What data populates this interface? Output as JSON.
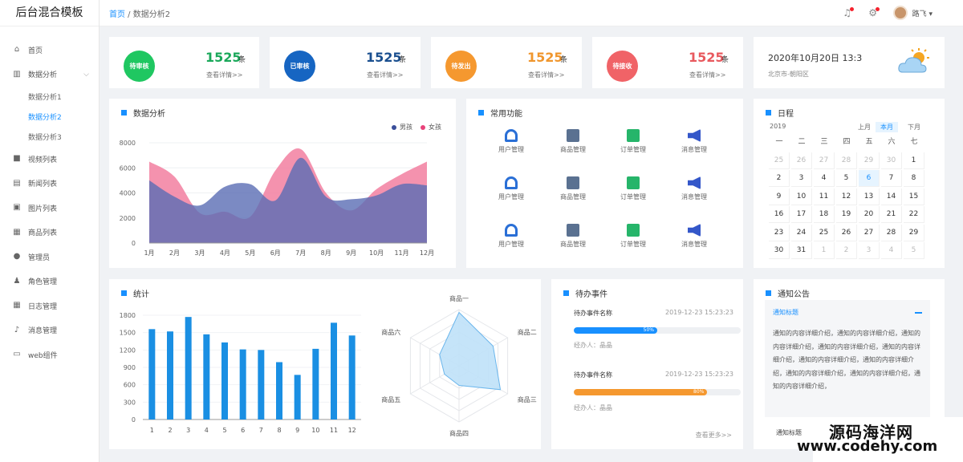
{
  "app": {
    "title": "后台混合模板"
  },
  "sidebar": {
    "items": [
      {
        "icon": "home-icon",
        "label": "首页"
      },
      {
        "icon": "bar-chart-icon",
        "label": "数据分析"
      },
      {
        "label": "数据分析1"
      },
      {
        "label": "数据分析2"
      },
      {
        "label": "数据分析3"
      },
      {
        "icon": "video-icon",
        "label": "视频列表"
      },
      {
        "icon": "document-icon",
        "label": "新闻列表"
      },
      {
        "icon": "image-icon",
        "label": "图片列表"
      },
      {
        "icon": "shop-icon",
        "label": "商品列表"
      },
      {
        "icon": "user-icon",
        "label": "管理员"
      },
      {
        "icon": "users-icon",
        "label": "角色管理"
      },
      {
        "icon": "calendar-icon",
        "label": "日志管理"
      },
      {
        "icon": "bell-icon",
        "label": "消息管理"
      },
      {
        "icon": "component-icon",
        "label": "web组件"
      }
    ]
  },
  "topbar": {
    "breadcrumb_home": "首页",
    "breadcrumb_sep": " / ",
    "breadcrumb_current": "数据分析2",
    "username": "路飞 ▾"
  },
  "stats": [
    {
      "badge": "待审核",
      "value": "1525",
      "unit": "条",
      "link": "查看详情>>",
      "color": "#1fc761"
    },
    {
      "badge": "已审核",
      "value": "1525",
      "unit": "条",
      "link": "查看详情>>",
      "color": "#1665c2"
    },
    {
      "badge": "待发出",
      "value": "1525",
      "unit": "条",
      "link": "查看详情>>",
      "color": "#f5982f"
    },
    {
      "badge": "待接收",
      "value": "1525",
      "unit": "条",
      "link": "查看详情>>",
      "color": "#f06367"
    }
  ],
  "datetime": {
    "date": "2020年10月20日 13:3",
    "location": "北京市-朝阳区"
  },
  "analysis": {
    "title": "数据分析",
    "legend": [
      "男孩",
      "女孩"
    ]
  },
  "functions": {
    "title": "常用功能",
    "labels": [
      "用户管理",
      "商品管理",
      "订单管理",
      "消息管理"
    ]
  },
  "calendar": {
    "title": "日程",
    "year": "2019",
    "buttons": [
      "上月",
      "本月",
      "下月"
    ],
    "weekdays": [
      "一",
      "二",
      "三",
      "四",
      "五",
      "六",
      "七"
    ],
    "days": [
      [
        "25",
        "26",
        "27",
        "28",
        "29",
        "30",
        "1"
      ],
      [
        "2",
        "3",
        "4",
        "5",
        "6",
        "7",
        "8"
      ],
      [
        "9",
        "10",
        "11",
        "12",
        "13",
        "14",
        "15"
      ],
      [
        "16",
        "17",
        "18",
        "19",
        "20",
        "21",
        "22"
      ],
      [
        "23",
        "24",
        "25",
        "26",
        "27",
        "28",
        "29"
      ],
      [
        "30",
        "31",
        "1",
        "2",
        "3",
        "4",
        "5"
      ]
    ]
  },
  "stats_chart": {
    "title": "统计"
  },
  "todo": {
    "title": "待办事件",
    "items": [
      {
        "name": "待办事件名称",
        "time": "2019-12-23   15:23:23",
        "progress": 50,
        "label": "50%",
        "person": "经办人：晶晶",
        "color": "#1890ff"
      },
      {
        "name": "待办事件名称",
        "time": "2019-12-23   15:23:23",
        "progress": 80,
        "label": "80%",
        "person": "经办人：晶晶",
        "color": "#f5982f"
      }
    ],
    "more": "查看更多>>"
  },
  "notice": {
    "title": "通知公告",
    "item_title": "通知标题",
    "body": "通知的内容详细介绍，通知的内容详细介绍，通知的内容详细介绍，通知的内容详细介绍，通知的内容详细介绍，通知的内容详细介绍，通知的内容详细介绍，通知的内容详细介绍，通知的内容详细介绍，通知的内容详细介绍，",
    "item_title2": "通知标题"
  },
  "watermark": {
    "line1": "源码海洋网",
    "line2": "www.codehy.com"
  },
  "chart_data": [
    {
      "type": "area",
      "categories": [
        "1月",
        "2月",
        "3月",
        "4月",
        "5月",
        "6月",
        "7月",
        "8月",
        "9月",
        "10月",
        "11月",
        "12月"
      ],
      "ylim": [
        0,
        8000
      ],
      "yticks": [
        "0",
        "2000",
        "4000",
        "6000",
        "8000"
      ],
      "series": [
        {
          "name": "男孩",
          "color": "#5a6db4",
          "values": [
            5000,
            3700,
            3000,
            4500,
            4700,
            3400,
            6800,
            3700,
            3500,
            3800,
            4700,
            4600
          ]
        },
        {
          "name": "女孩",
          "color": "#f27fa0",
          "values": [
            6500,
            5300,
            2400,
            2500,
            2100,
            5800,
            7500,
            4000,
            2600,
            4300,
            5500,
            6500
          ]
        }
      ]
    },
    {
      "type": "bar",
      "categories": [
        "1",
        "2",
        "3",
        "4",
        "5",
        "6",
        "7",
        "8",
        "9",
        "10",
        "11",
        "12"
      ],
      "ylim": [
        0,
        1800
      ],
      "yticks": [
        "0",
        "300",
        "600",
        "900",
        "1200",
        "1500",
        "1800"
      ],
      "values": [
        1560,
        1520,
        1770,
        1470,
        1330,
        1210,
        1200,
        990,
        770,
        1220,
        1670,
        1450
      ],
      "color": "#1a8fe3"
    },
    {
      "type": "radar",
      "indicators": [
        "商品一",
        "商品二",
        "商品三",
        "商品四",
        "商品五",
        "商品六"
      ],
      "values": [
        0.95,
        0.7,
        0.85,
        0.35,
        0.3,
        0.4
      ]
    }
  ]
}
